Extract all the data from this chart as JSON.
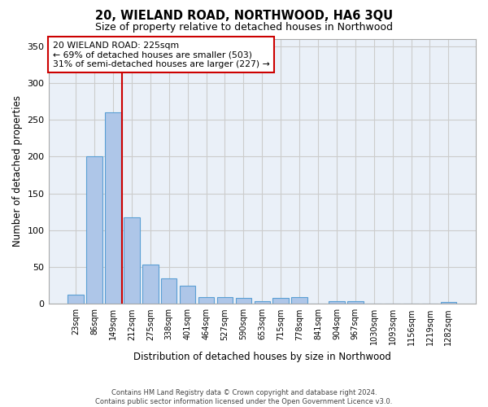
{
  "title": "20, WIELAND ROAD, NORTHWOOD, HA6 3QU",
  "subtitle": "Size of property relative to detached houses in Northwood",
  "xlabel": "Distribution of detached houses by size in Northwood",
  "ylabel": "Number of detached properties",
  "categories": [
    "23sqm",
    "86sqm",
    "149sqm",
    "212sqm",
    "275sqm",
    "338sqm",
    "401sqm",
    "464sqm",
    "527sqm",
    "590sqm",
    "653sqm",
    "715sqm",
    "778sqm",
    "841sqm",
    "904sqm",
    "967sqm",
    "1030sqm",
    "1093sqm",
    "1156sqm",
    "1219sqm",
    "1282sqm"
  ],
  "values": [
    12,
    200,
    260,
    118,
    53,
    35,
    25,
    9,
    9,
    8,
    4,
    8,
    9,
    0,
    4,
    4,
    0,
    0,
    0,
    0,
    3
  ],
  "bar_color": "#aec6e8",
  "bar_edge_color": "#5a9fd4",
  "grid_color": "#cccccc",
  "background_color": "#eaf0f8",
  "vline_color": "#cc0000",
  "annotation_text": "20 WIELAND ROAD: 225sqm\n← 69% of detached houses are smaller (503)\n31% of semi-detached houses are larger (227) →",
  "annotation_box_color": "#ffffff",
  "annotation_box_edge_color": "#cc0000",
  "ylim": [
    0,
    360
  ],
  "yticks": [
    0,
    50,
    100,
    150,
    200,
    250,
    300,
    350
  ],
  "footer_line1": "Contains HM Land Registry data © Crown copyright and database right 2024.",
  "footer_line2": "Contains public sector information licensed under the Open Government Licence v3.0."
}
